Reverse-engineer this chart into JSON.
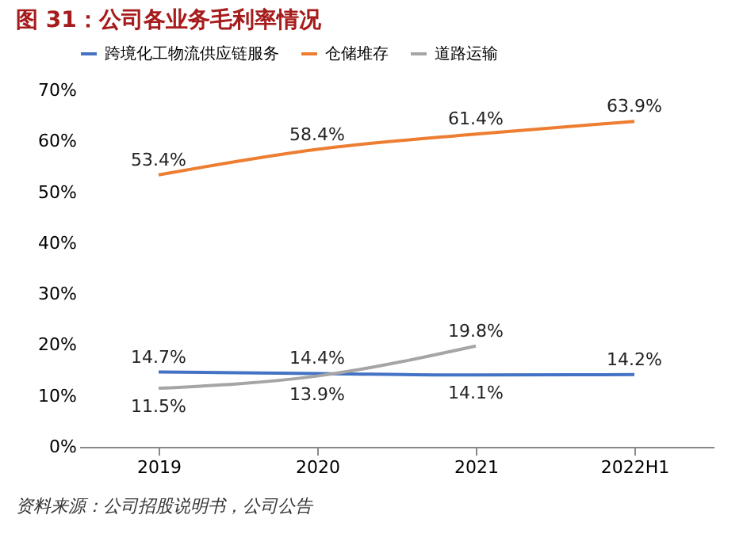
{
  "chart_data": {
    "type": "line",
    "title": "图 31：公司各业务毛利率情况",
    "categories": [
      "2019",
      "2020",
      "2021",
      "2022H1"
    ],
    "series": [
      {
        "name": "跨境化工物流供应链服务",
        "color": "#4472c4",
        "values": [
          14.7,
          14.4,
          14.1,
          14.2
        ],
        "value_labels": [
          "14.7%",
          "14.4%",
          "14.1%",
          "14.2%"
        ]
      },
      {
        "name": "仓储堆存",
        "color": "#ed7d31",
        "values": [
          53.4,
          58.4,
          61.4,
          63.9
        ],
        "value_labels": [
          "53.4%",
          "58.4%",
          "61.4%",
          "63.9%"
        ]
      },
      {
        "name": "道路运输",
        "color": "#a5a5a5",
        "values": [
          11.5,
          13.9,
          19.8,
          null
        ],
        "value_labels": [
          "11.5%",
          "13.9%",
          "19.8%",
          null
        ]
      }
    ],
    "ylim": [
      0,
      70
    ],
    "yticks": [
      {
        "value": 0,
        "label": "0%"
      },
      {
        "value": 10,
        "label": "10%"
      },
      {
        "value": 20,
        "label": "20%"
      },
      {
        "value": 30,
        "label": "30%"
      },
      {
        "value": 40,
        "label": "40%"
      },
      {
        "value": 50,
        "label": "50%"
      },
      {
        "value": 60,
        "label": "60%"
      },
      {
        "value": 70,
        "label": "70%"
      }
    ],
    "grid": false,
    "legend": "top",
    "marker": "none",
    "line_style": "solid",
    "annotations": [
      "资料来源：公司招股说明书，公司公告"
    ]
  }
}
